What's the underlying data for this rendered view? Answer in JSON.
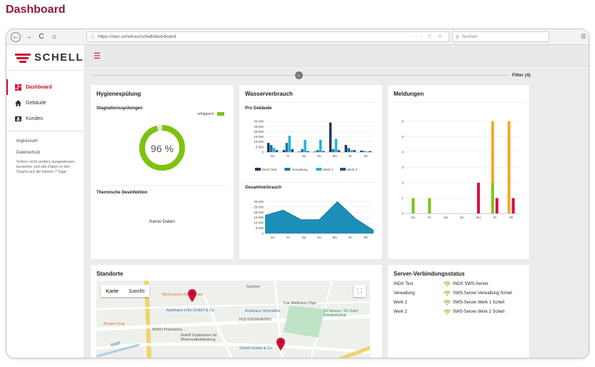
{
  "heading": "Dashboard",
  "browser": {
    "url": "https://sws.schell.eu/schell/dashboard",
    "search_placeholder": "Suchen",
    "nav_back": "←",
    "nav_forward": "→",
    "nav_reload": "C",
    "nav_home": "⌂",
    "page_tools": "··· ♡ ☆",
    "menu": "|||"
  },
  "brand": {
    "name": "SCHELL",
    "color": "#c8102e"
  },
  "sidebar": {
    "items": [
      {
        "label": "Dashboard",
        "icon": "dashboard-icon"
      },
      {
        "label": "Gebäude",
        "icon": "home-icon"
      },
      {
        "label": "Kunden",
        "icon": "contact-card-icon"
      }
    ],
    "links": [
      "Impressum",
      "Datenschutz"
    ],
    "note": "Sofern nicht anders ausgewiesen, beziehen sich die Daten in den Charts auf die letzten 7 Tage"
  },
  "filter": {
    "label": "Filter (4)",
    "toggle": "⌄"
  },
  "hygiene": {
    "title": "Hygienespülung",
    "stagnation_title": "Stagnationsspülungen",
    "legend": "erfolgreich",
    "percent": 96,
    "percent_label": "96 %",
    "thermo_title": "Thermische Desinfektion",
    "thermo_empty": "Keine Daten",
    "green": "#7dc30f"
  },
  "wasser": {
    "title": "Wasserverbrauch",
    "pro_title": "Pro Gebäude",
    "gesamt_title": "Gesamtverbrauch"
  },
  "meldungen": {
    "title": "Meldungen"
  },
  "standorte": {
    "title": "Standorte",
    "map_tab_map": "Karte",
    "map_tab_sat": "Satellit",
    "labels": [
      "Suchen",
      "McDonald's Restaurant",
      "Car Wellness Olpe",
      "Autohaus Löhr GmbH & Co",
      "Autohaus Schmeltor",
      "SV Arena / SV Dahl Friedrichshal",
      "POLYGONVATRO",
      "Burger King",
      "WIRO Präzisions...",
      "Roleff Outletstore für Motorradbekleidung",
      "Schell GmbH & Co",
      "Bigge"
    ]
  },
  "server": {
    "title": "Server-Verbindungsstatus",
    "rows": [
      {
        "name": "INOX Test",
        "server": "INOX SWS-Server"
      },
      {
        "name": "Verwaltung",
        "server": "SWS-Server Verwaltung Schell"
      },
      {
        "name": "Werk 1",
        "server": "SWS-Server Werk 1 Schell"
      },
      {
        "name": "Werk 2",
        "server": "SWS-Server Werk 2 Schell"
      }
    ]
  },
  "chart_data": [
    {
      "type": "bar",
      "title": "Pro Gebäude",
      "categories": [
        "Do",
        "Fr",
        "Sa",
        "So",
        "Mo",
        "Di",
        "Mi"
      ],
      "ylim": [
        0,
        35000
      ],
      "yticks": [
        "0",
        "5.000",
        "10.000",
        "15.000",
        "20.000",
        "25.000",
        "30.000"
      ],
      "series": [
        {
          "name": "INOX Test",
          "color": "#1f3a5f",
          "values": [
            9000,
            2000,
            500,
            500,
            29000,
            7000,
            1500
          ]
        },
        {
          "name": "Verwaltung",
          "color": "#1b78a8",
          "values": [
            7000,
            9000,
            3000,
            2000,
            3000,
            4000,
            1000
          ]
        },
        {
          "name": "Werk 1",
          "color": "#1fb6d8",
          "values": [
            4000,
            16000,
            12000,
            12000,
            13000,
            2000,
            500
          ]
        },
        {
          "name": "Werk 2",
          "color": "#2a4f7a",
          "values": [
            2000,
            3000,
            1000,
            1000,
            2000,
            2000,
            1000
          ]
        }
      ]
    },
    {
      "type": "area",
      "title": "Gesamtverbrauch",
      "categories": [
        "Do",
        "Fr",
        "Sa",
        "So",
        "Mo",
        "Di",
        "Mi"
      ],
      "ylim": [
        0,
        35000
      ],
      "yticks": [
        "0",
        "5.000",
        "10.000",
        "15.000",
        "20.000",
        "25.000",
        "30.000"
      ],
      "series": [
        {
          "name": "Gesamt",
          "color": "#1b8fb8",
          "values": [
            17000,
            22000,
            13000,
            13000,
            30000,
            14000,
            3000
          ]
        }
      ]
    },
    {
      "type": "bar",
      "title": "Meldungen",
      "categories": [
        "Do",
        "Fr",
        "Sa",
        "So",
        "Mo",
        "Di",
        "Mi"
      ],
      "ylim": [
        0,
        6.5
      ],
      "yticks": [
        "0",
        "1",
        "2",
        "3",
        "4",
        "5",
        "6"
      ],
      "stacked_cols": [
        {
          "bars": [
            {
              "color": "#7dc30f",
              "value": 1
            }
          ]
        },
        {
          "bars": [
            {
              "color": "#7dc30f",
              "value": 1
            }
          ]
        },
        {
          "bars": []
        },
        {
          "bars": []
        },
        {
          "bars": [
            {
              "color": "#d0103a",
              "value": 2
            }
          ]
        },
        {
          "bars": [
            {
              "color": "#7dc30f",
              "value": 2,
              "stack": [
                {
                  "color": "#f5a623",
                  "value": 4
                }
              ]
            },
            {
              "color": "#d0103a",
              "value": 1
            }
          ]
        },
        {
          "bars": [
            {
              "color": "#f5a623",
              "value": 6
            },
            {
              "color": "#d0103a",
              "value": 1
            }
          ]
        }
      ]
    }
  ]
}
